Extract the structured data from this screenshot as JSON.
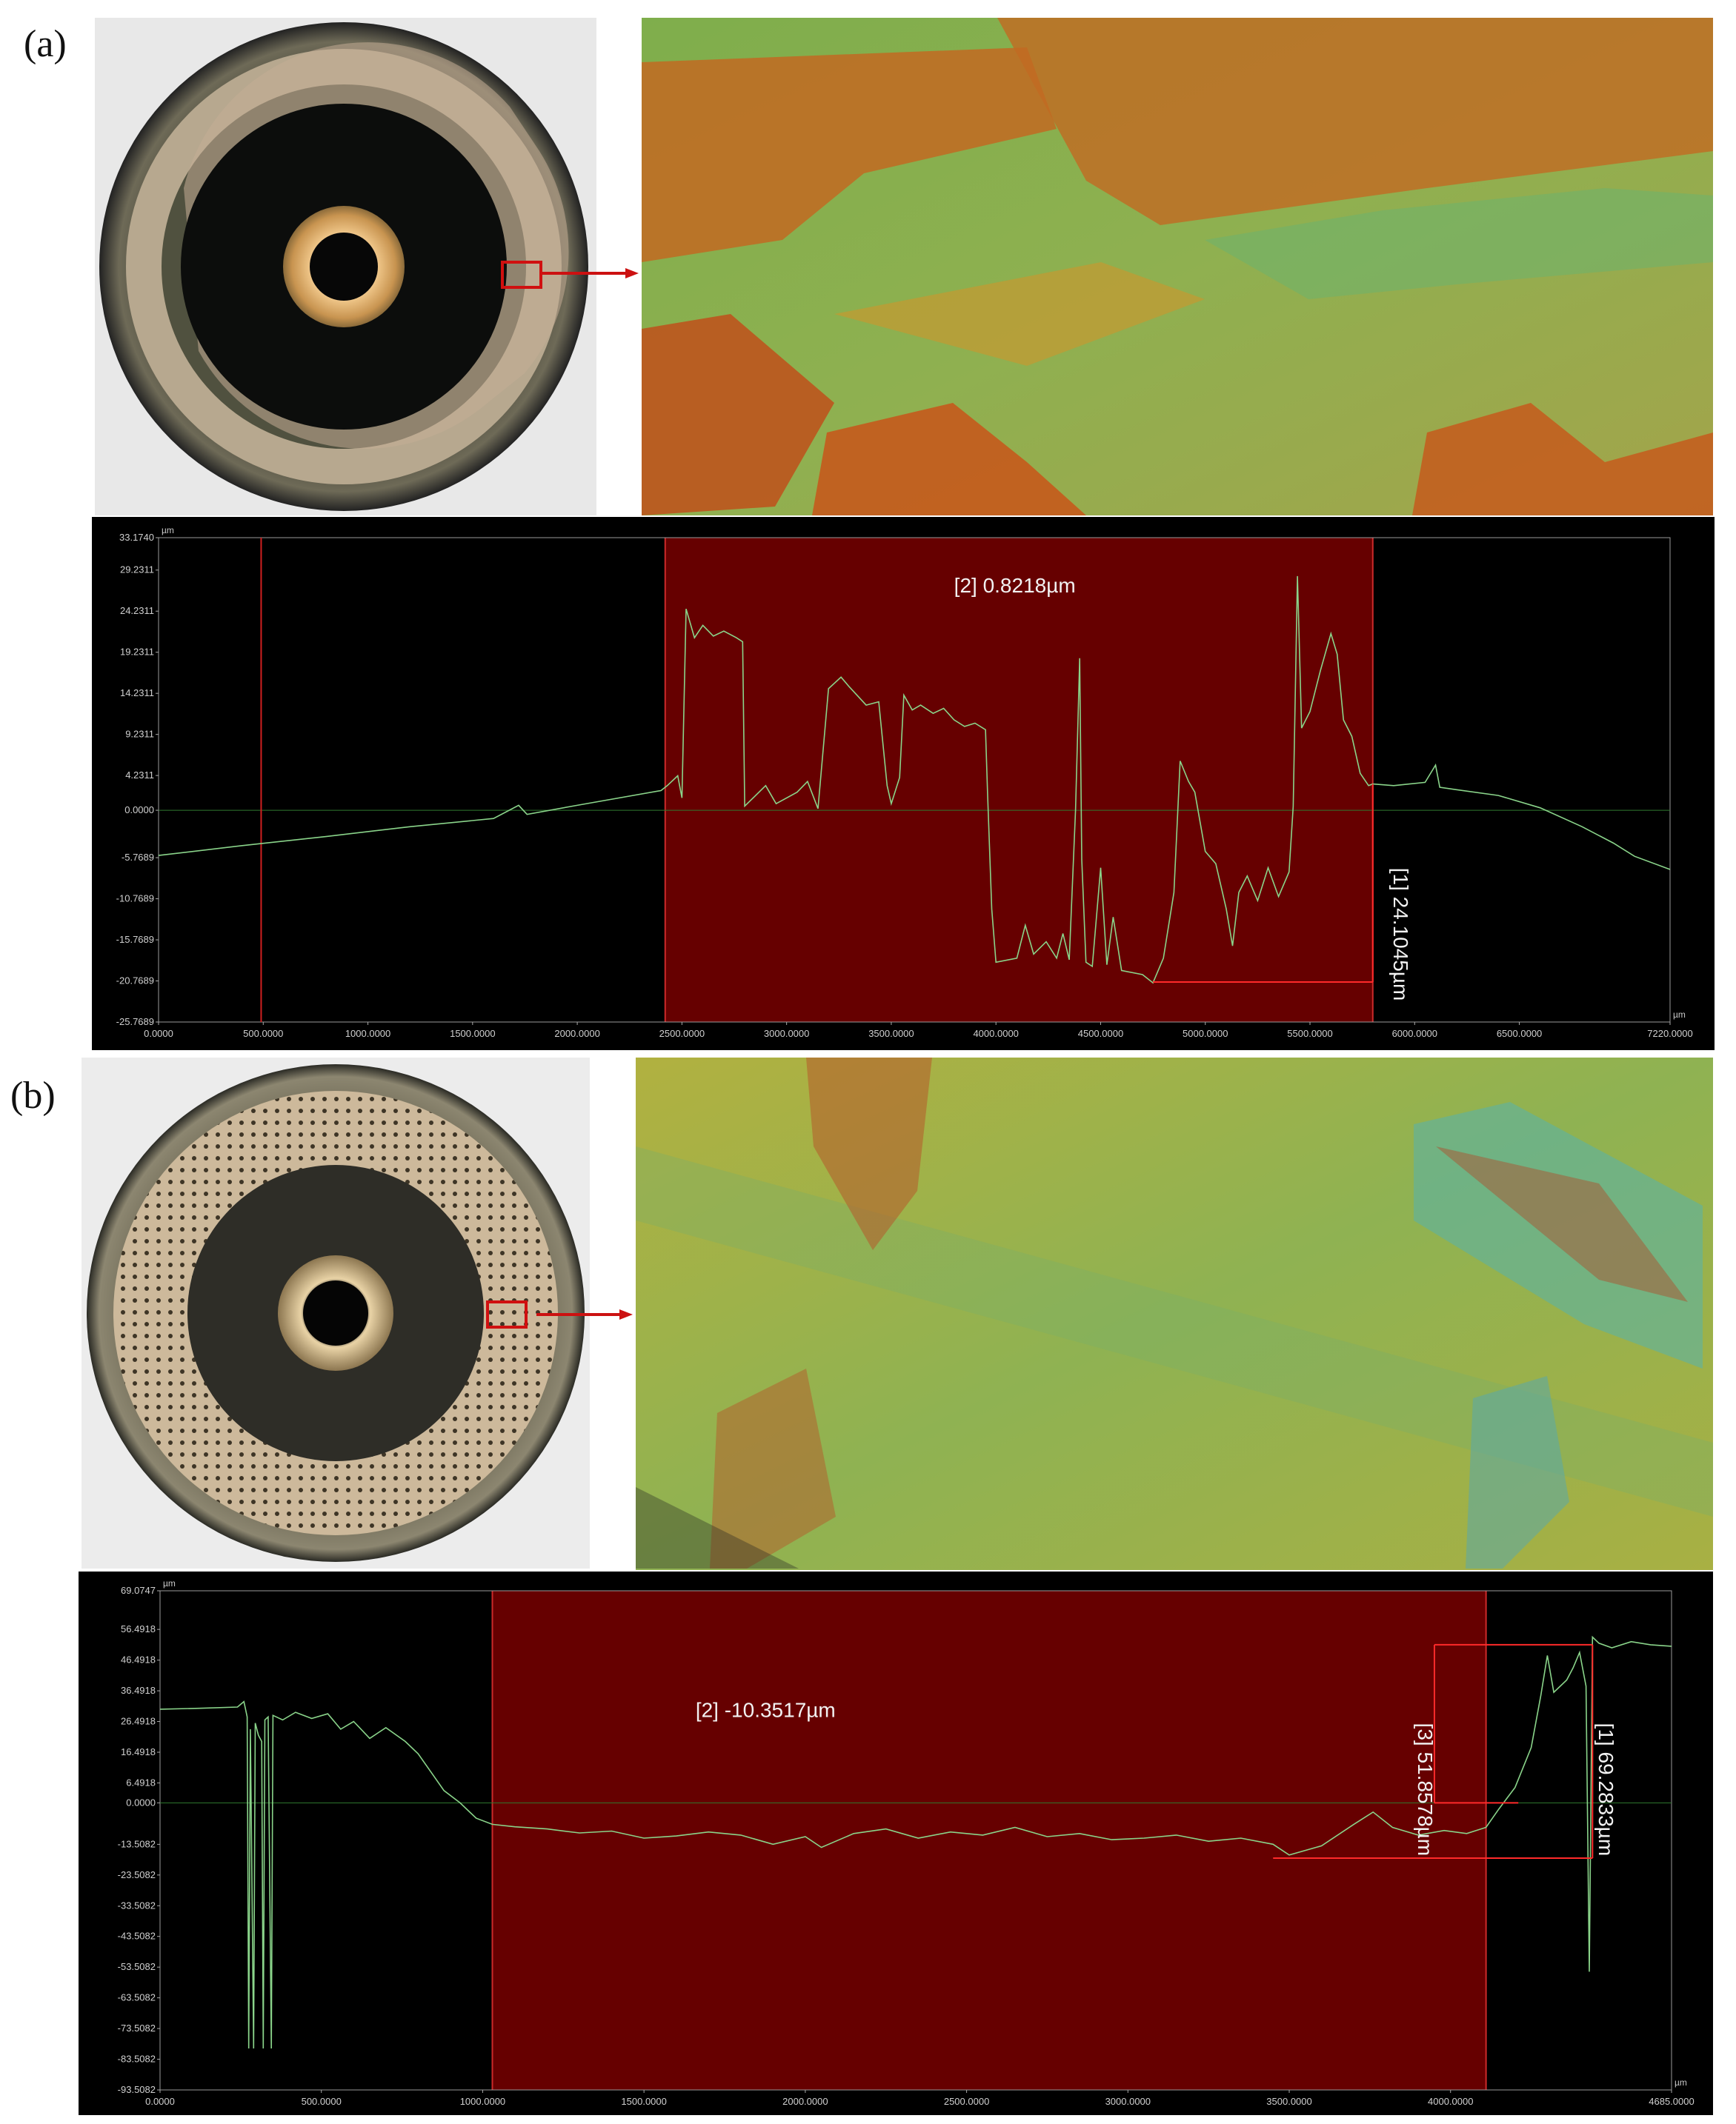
{
  "panels": [
    {
      "label": "(a)",
      "photo": {
        "description_icon": "coated-seal-face-photo",
        "ring_color": "#b8a58f"
      },
      "surface": {
        "description_icon": "3d-surface-map-icon"
      },
      "chart_data": {
        "type": "line",
        "x_unit": "µm",
        "y_unit": "µm",
        "xlim": [
          0,
          7220
        ],
        "ylim": [
          -25.7689,
          33.174
        ],
        "x_ticks": [
          "0.0000",
          "500.0000",
          "1000.0000",
          "1500.0000",
          "2000.0000",
          "2500.0000",
          "3000.0000",
          "3500.0000",
          "4000.0000",
          "4500.0000",
          "5000.0000",
          "5500.0000",
          "6000.0000",
          "6500.0000",
          "7220.0000"
        ],
        "x_tick_values": [
          0,
          500,
          1000,
          1500,
          2000,
          2500,
          3000,
          3500,
          4000,
          4500,
          5000,
          5500,
          6000,
          6500,
          7220
        ],
        "y_ticks": [
          "33.1740",
          "29.2311",
          "24.2311",
          "19.2311",
          "14.2311",
          "9.2311",
          "4.2311",
          "0.0000",
          "-5.7689",
          "-10.7689",
          "-15.7689",
          "-20.7689",
          "-25.7689"
        ],
        "y_tick_values": [
          33.174,
          29.2311,
          24.2311,
          19.2311,
          14.2311,
          9.2311,
          4.2311,
          0,
          -5.7689,
          -10.7689,
          -15.7689,
          -20.7689,
          -25.7689
        ],
        "selection_range": [
          2420,
          5800
        ],
        "cursor_x": 490,
        "annotations": [
          {
            "label": "[2] 0.8218µm",
            "x": 3800,
            "y": 26.5,
            "orientation": "horizontal"
          },
          {
            "label": "[1] 24.1045µm",
            "x": 5900,
            "y": -7,
            "orientation": "vertical"
          }
        ],
        "markers": {
          "x": 5800,
          "top": 3.2,
          "bottom": -20.9,
          "hline_from": 4750
        },
        "series": [
          {
            "color": "#8ad48a",
            "points": [
              [
                0,
                -5.5
              ],
              [
                400,
                -4.3
              ],
              [
                800,
                -3.2
              ],
              [
                1200,
                -2.0
              ],
              [
                1600,
                -1.0
              ],
              [
                1720,
                0.6
              ],
              [
                1760,
                -0.5
              ],
              [
                2000,
                0.6
              ],
              [
                2400,
                2.4
              ],
              [
                2430,
                3.0
              ],
              [
                2480,
                4.2
              ],
              [
                2500,
                1.5
              ],
              [
                2520,
                24.5
              ],
              [
                2560,
                21.0
              ],
              [
                2600,
                22.5
              ],
              [
                2650,
                21.2
              ],
              [
                2700,
                21.8
              ],
              [
                2760,
                21.0
              ],
              [
                2790,
                20.5
              ],
              [
                2800,
                0.5
              ],
              [
                2900,
                3.0
              ],
              [
                2950,
                0.8
              ],
              [
                3050,
                2.2
              ],
              [
                3100,
                3.5
              ],
              [
                3150,
                0.2
              ],
              [
                3200,
                14.8
              ],
              [
                3260,
                16.2
              ],
              [
                3300,
                15.0
              ],
              [
                3380,
                12.8
              ],
              [
                3440,
                13.2
              ],
              [
                3480,
                3.0
              ],
              [
                3500,
                0.8
              ],
              [
                3540,
                4.0
              ],
              [
                3560,
                14.0
              ],
              [
                3600,
                12.2
              ],
              [
                3640,
                12.8
              ],
              [
                3700,
                11.8
              ],
              [
                3750,
                12.4
              ],
              [
                3800,
                11.0
              ],
              [
                3850,
                10.2
              ],
              [
                3900,
                10.6
              ],
              [
                3950,
                9.8
              ],
              [
                3960,
                2.0
              ],
              [
                3980,
                -12.0
              ],
              [
                4000,
                -18.5
              ],
              [
                4100,
                -18.0
              ],
              [
                4140,
                -14.0
              ],
              [
                4180,
                -17.5
              ],
              [
                4240,
                -16.0
              ],
              [
                4290,
                -18.0
              ],
              [
                4320,
                -15.0
              ],
              [
                4350,
                -18.2
              ],
              [
                4380,
                0.0
              ],
              [
                4400,
                18.5
              ],
              [
                4410,
                -6.0
              ],
              [
                4430,
                -18.5
              ],
              [
                4460,
                -19.0
              ],
              [
                4500,
                -7.0
              ],
              [
                4530,
                -18.8
              ],
              [
                4560,
                -13.0
              ],
              [
                4600,
                -19.5
              ],
              [
                4700,
                -20.0
              ],
              [
                4750,
                -21.0
              ],
              [
                4800,
                -18.0
              ],
              [
                4850,
                -10.0
              ],
              [
                4880,
                6.0
              ],
              [
                4920,
                3.5
              ],
              [
                4950,
                2.2
              ],
              [
                5000,
                -5.0
              ],
              [
                5050,
                -6.5
              ],
              [
                5100,
                -12.0
              ],
              [
                5130,
                -16.5
              ],
              [
                5160,
                -10.0
              ],
              [
                5200,
                -8.0
              ],
              [
                5250,
                -11.0
              ],
              [
                5300,
                -7.0
              ],
              [
                5350,
                -10.5
              ],
              [
                5400,
                -7.5
              ],
              [
                5420,
                0.5
              ],
              [
                5440,
                28.5
              ],
              [
                5460,
                10.0
              ],
              [
                5500,
                12.0
              ],
              [
                5550,
                17.0
              ],
              [
                5600,
                21.5
              ],
              [
                5630,
                19.0
              ],
              [
                5660,
                11.0
              ],
              [
                5700,
                9.0
              ],
              [
                5740,
                4.5
              ],
              [
                5780,
                3.0
              ],
              [
                5800,
                3.2
              ],
              [
                5900,
                3.0
              ],
              [
                6050,
                3.4
              ],
              [
                6100,
                5.5
              ],
              [
                6120,
                2.8
              ],
              [
                6200,
                2.5
              ],
              [
                6400,
                1.8
              ],
              [
                6600,
                0.3
              ],
              [
                6800,
                -2.0
              ],
              [
                6950,
                -4.0
              ],
              [
                7050,
                -5.6
              ],
              [
                7220,
                -7.2
              ]
            ]
          }
        ]
      }
    },
    {
      "label": "(b)",
      "photo": {
        "description_icon": "textured-seal-face-photo",
        "ring_color": "#c9b59a"
      },
      "surface": {
        "description_icon": "3d-surface-map-icon"
      },
      "chart_data": {
        "type": "line",
        "x_unit": "µm",
        "y_unit": "µm",
        "xlim": [
          0,
          4685
        ],
        "ylim": [
          -93.5082,
          69.0747
        ],
        "x_ticks": [
          "0.0000",
          "500.0000",
          "1000.0000",
          "1500.0000",
          "2000.0000",
          "2500.0000",
          "3000.0000",
          "3500.0000",
          "4000.0000",
          "4685.0000"
        ],
        "x_tick_values": [
          0,
          500,
          1000,
          1500,
          2000,
          2500,
          3000,
          3500,
          4000,
          4685
        ],
        "y_ticks": [
          "69.0747",
          "56.4918",
          "46.4918",
          "36.4918",
          "26.4918",
          "16.4918",
          "6.4918",
          "0.0000",
          "-13.5082",
          "-23.5082",
          "-33.5082",
          "-43.5082",
          "-53.5082",
          "-63.5082",
          "-73.5082",
          "-83.5082",
          "-93.5082"
        ],
        "y_tick_values": [
          69.0747,
          56.4918,
          46.4918,
          36.4918,
          26.4918,
          16.4918,
          6.4918,
          0,
          -13.5082,
          -23.5082,
          -33.5082,
          -43.5082,
          -53.5082,
          -63.5082,
          -73.5082,
          -83.5082,
          -93.5082
        ],
        "selection_range": [
          1030,
          4110
        ],
        "annotations": [
          {
            "label": "[2] -10.3517µm",
            "x": 1660,
            "y": 28,
            "orientation": "horizontal"
          },
          {
            "label": "[3] 51.8578µm",
            "x": 3900,
            "y": 26,
            "orientation": "vertical"
          },
          {
            "label": "[1] 69.2833µm",
            "x": 4460,
            "y": 26,
            "orientation": "vertical"
          }
        ],
        "markers": {
          "x1": 3950,
          "x2": 4440,
          "top": 51.5,
          "zero": 0,
          "bottom": -18
        },
        "series": [
          {
            "color": "#8ad48a",
            "points": [
              [
                0,
                30.5
              ],
              [
                120,
                30.8
              ],
              [
                240,
                31.2
              ],
              [
                260,
                33.0
              ],
              [
                270,
                28.0
              ],
              [
                275,
                -80.0
              ],
              [
                280,
                24.0
              ],
              [
                290,
                -80.0
              ],
              [
                295,
                26.0
              ],
              [
                305,
                22.0
              ],
              [
                315,
                20.0
              ],
              [
                320,
                -80.0
              ],
              [
                325,
                27.0
              ],
              [
                335,
                28.0
              ],
              [
                345,
                -80.0
              ],
              [
                350,
                28.5
              ],
              [
                380,
                27.0
              ],
              [
                420,
                29.5
              ],
              [
                470,
                27.5
              ],
              [
                520,
                29.0
              ],
              [
                560,
                24.0
              ],
              [
                600,
                26.5
              ],
              [
                650,
                21.0
              ],
              [
                700,
                24.5
              ],
              [
                760,
                20.0
              ],
              [
                800,
                16.0
              ],
              [
                840,
                10.0
              ],
              [
                880,
                4.0
              ],
              [
                930,
                0.0
              ],
              [
                980,
                -5.0
              ],
              [
                1030,
                -7.0
              ],
              [
                1100,
                -7.8
              ],
              [
                1200,
                -8.5
              ],
              [
                1300,
                -9.8
              ],
              [
                1400,
                -9.2
              ],
              [
                1500,
                -11.5
              ],
              [
                1600,
                -10.8
              ],
              [
                1700,
                -9.5
              ],
              [
                1800,
                -10.5
              ],
              [
                1900,
                -13.5
              ],
              [
                2000,
                -11.0
              ],
              [
                2050,
                -14.5
              ],
              [
                2150,
                -10.0
              ],
              [
                2250,
                -8.5
              ],
              [
                2350,
                -11.5
              ],
              [
                2450,
                -9.5
              ],
              [
                2550,
                -10.5
              ],
              [
                2650,
                -8.0
              ],
              [
                2750,
                -11.0
              ],
              [
                2850,
                -10.0
              ],
              [
                2950,
                -12.0
              ],
              [
                3050,
                -11.5
              ],
              [
                3150,
                -10.5
              ],
              [
                3250,
                -12.5
              ],
              [
                3350,
                -11.5
              ],
              [
                3450,
                -13.5
              ],
              [
                3500,
                -17.0
              ],
              [
                3600,
                -14.0
              ],
              [
                3700,
                -7.0
              ],
              [
                3760,
                -3.0
              ],
              [
                3820,
                -8.0
              ],
              [
                3900,
                -10.5
              ],
              [
                3980,
                -9.0
              ],
              [
                4050,
                -10.0
              ],
              [
                4110,
                -8.0
              ],
              [
                4150,
                -2.0
              ],
              [
                4200,
                5.0
              ],
              [
                4250,
                18.0
              ],
              [
                4280,
                35.0
              ],
              [
                4300,
                48.0
              ],
              [
                4320,
                36.0
              ],
              [
                4360,
                40.0
              ],
              [
                4380,
                44.0
              ],
              [
                4400,
                49.0
              ],
              [
                4420,
                38.0
              ],
              [
                4430,
                -55.0
              ],
              [
                4440,
                54.0
              ],
              [
                4460,
                52.0
              ],
              [
                4500,
                50.5
              ],
              [
                4560,
                52.5
              ],
              [
                4620,
                51.5
              ],
              [
                4685,
                51.0
              ]
            ]
          }
        ]
      }
    }
  ]
}
